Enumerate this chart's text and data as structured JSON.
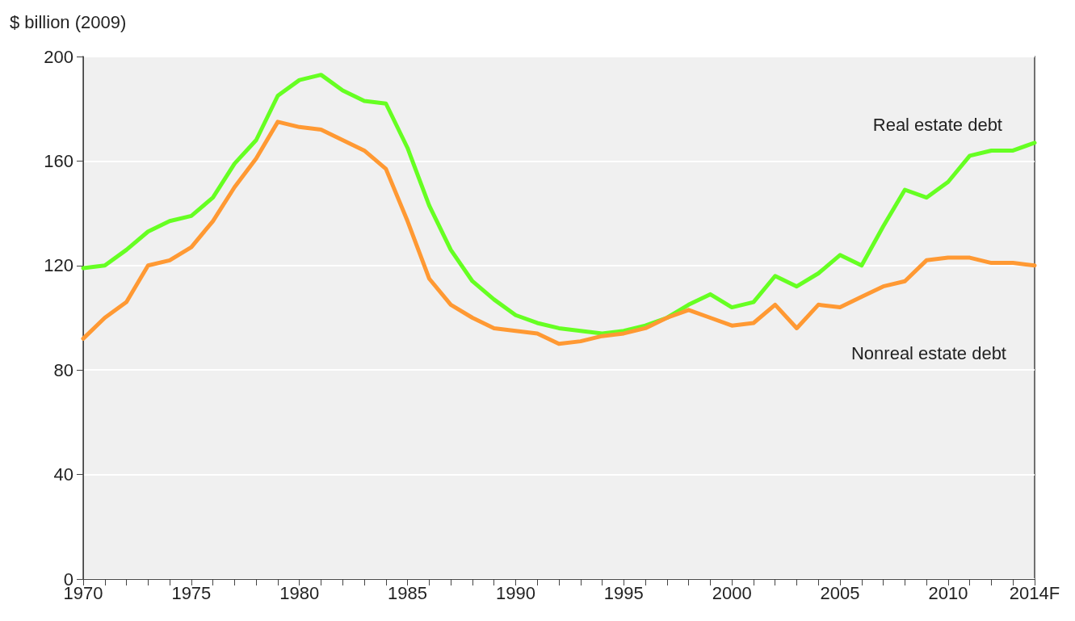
{
  "chart_data": {
    "type": "line",
    "ylabel": "$ billion (2009)",
    "x": [
      1970,
      1971,
      1972,
      1973,
      1974,
      1975,
      1976,
      1977,
      1978,
      1979,
      1980,
      1981,
      1982,
      1983,
      1984,
      1985,
      1986,
      1987,
      1988,
      1989,
      1990,
      1991,
      1992,
      1993,
      1994,
      1995,
      1996,
      1997,
      1998,
      1999,
      2000,
      2001,
      2002,
      2003,
      2004,
      2005,
      2006,
      2007,
      2008,
      2009,
      2010,
      2011,
      2012,
      2013,
      2014
    ],
    "series": [
      {
        "name": "Real estate debt",
        "color": "#66ff22",
        "values": [
          119,
          120,
          126,
          133,
          137,
          139,
          146,
          159,
          168,
          185,
          191,
          193,
          187,
          183,
          182,
          165,
          143,
          126,
          114,
          107,
          101,
          98,
          96,
          95,
          94,
          95,
          97,
          100,
          105,
          109,
          104,
          106,
          116,
          112,
          117,
          124,
          120,
          135,
          149,
          146,
          152,
          162,
          164,
          164,
          167
        ]
      },
      {
        "name": "Nonreal estate debt",
        "color": "#ff9933",
        "values": [
          92,
          100,
          106,
          120,
          122,
          127,
          137,
          150,
          161,
          175,
          173,
          172,
          168,
          164,
          157,
          137,
          115,
          105,
          100,
          96,
          95,
          94,
          90,
          91,
          93,
          94,
          96,
          100,
          103,
          100,
          97,
          98,
          105,
          96,
          105,
          104,
          108,
          112,
          114,
          122,
          123,
          123,
          121,
          121,
          120
        ]
      }
    ],
    "xlim": [
      1970,
      2014
    ],
    "xticks": [
      1970,
      {
        "value": 1971,
        "label": null
      },
      {
        "value": 1972,
        "label": null
      },
      {
        "value": 1973,
        "label": null
      },
      {
        "value": 1974,
        "label": null
      },
      1975,
      {
        "value": 1976,
        "label": null
      },
      {
        "value": 1977,
        "label": null
      },
      {
        "value": 1978,
        "label": null
      },
      {
        "value": 1979,
        "label": null
      },
      1980,
      {
        "value": 1981,
        "label": null
      },
      {
        "value": 1982,
        "label": null
      },
      {
        "value": 1983,
        "label": null
      },
      {
        "value": 1984,
        "label": null
      },
      1985,
      {
        "value": 1986,
        "label": null
      },
      {
        "value": 1987,
        "label": null
      },
      {
        "value": 1988,
        "label": null
      },
      {
        "value": 1989,
        "label": null
      },
      1990,
      {
        "value": 1991,
        "label": null
      },
      {
        "value": 1992,
        "label": null
      },
      {
        "value": 1993,
        "label": null
      },
      {
        "value": 1994,
        "label": null
      },
      1995,
      {
        "value": 1996,
        "label": null
      },
      {
        "value": 1997,
        "label": null
      },
      {
        "value": 1998,
        "label": null
      },
      {
        "value": 1999,
        "label": null
      },
      2000,
      {
        "value": 2001,
        "label": null
      },
      {
        "value": 2002,
        "label": null
      },
      {
        "value": 2003,
        "label": null
      },
      {
        "value": 2004,
        "label": null
      },
      2005,
      {
        "value": 2006,
        "label": null
      },
      {
        "value": 2007,
        "label": null
      },
      {
        "value": 2008,
        "label": null
      },
      {
        "value": 2009,
        "label": null
      },
      2010,
      {
        "value": 2011,
        "label": null
      },
      {
        "value": 2012,
        "label": null
      },
      {
        "value": 2013,
        "label": null
      },
      {
        "value": 2014,
        "label": "2014F"
      }
    ],
    "ylim": [
      0,
      200
    ],
    "yticks": [
      0,
      40,
      80,
      120,
      160,
      200
    ],
    "grid": "y",
    "legend": false,
    "marker": "none",
    "line_style": "solid"
  }
}
